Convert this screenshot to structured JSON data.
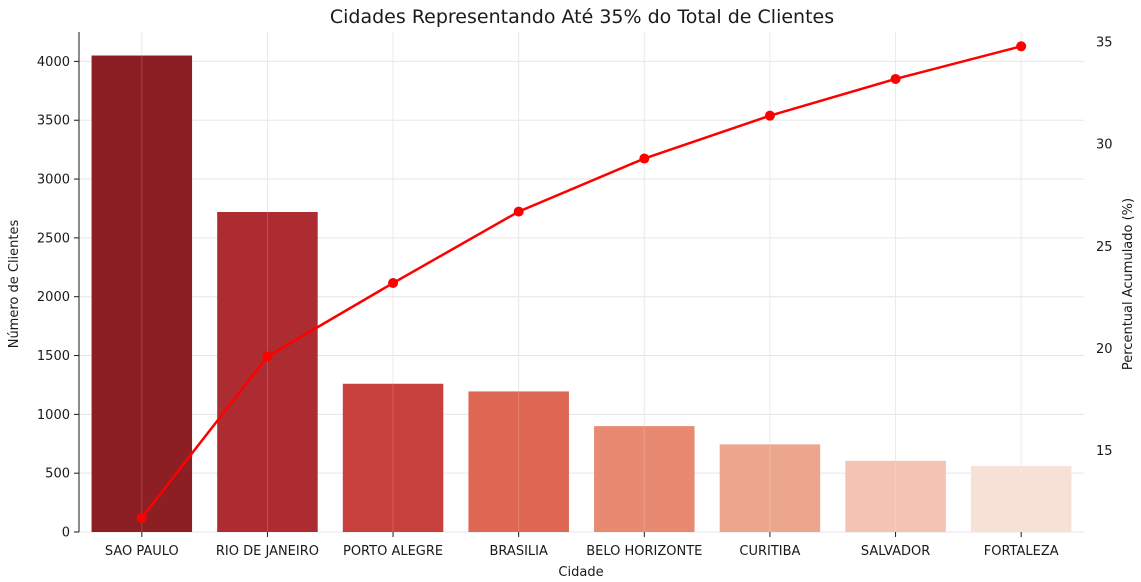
{
  "chart_data": {
    "type": "bar",
    "title": "Cidades Representando Até 35% do Total de Clientes",
    "xlabel": "Cidade",
    "ylabel": "Número de Clientes",
    "ylabel_right": "Percentual Acumulado (%)",
    "categories": [
      "SAO PAULO",
      "RIO DE JANEIRO",
      "PORTO ALEGRE",
      "BRASILIA",
      "BELO HORIZONTE",
      "CURITIBA",
      "SALVADOR",
      "FORTALEZA"
    ],
    "series": [
      {
        "type": "bar",
        "values": [
          4050,
          2720,
          1260,
          1195,
          900,
          745,
          605,
          560
        ],
        "colors": [
          "#8b1f24",
          "#ac2c32",
          "#c8403d",
          "#de6754",
          "#e88a72",
          "#eca68e",
          "#f2c4b1",
          "#f7e0d5"
        ]
      },
      {
        "type": "line",
        "axis": "right",
        "values": [
          11.7,
          19.6,
          23.2,
          26.7,
          29.3,
          31.4,
          33.2,
          34.8
        ],
        "color": "#ff0000"
      }
    ],
    "ylim": [
      0,
      4250
    ],
    "yticks": [
      0,
      500,
      1000,
      1500,
      2000,
      2500,
      3000,
      3500,
      4000
    ],
    "ylim_right": [
      11,
      35.5
    ],
    "yticks_right": [
      15,
      20,
      25,
      30,
      35
    ],
    "grid": true
  }
}
